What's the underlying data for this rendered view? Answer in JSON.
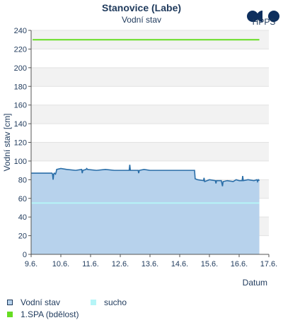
{
  "header": {
    "title": "Stanovice (Labe)",
    "subtitle": "Vodní stav",
    "logo_text": "HPPS"
  },
  "colors": {
    "text": "#1f3a5c",
    "water_line": "#2a6ea8",
    "water_fill": "#b7d2ec",
    "drought": "#b6f5f7",
    "spa1": "#66dd22",
    "band": "#f2f2f2",
    "axis": "#555555"
  },
  "chart_data": {
    "type": "line",
    "title": "Stanovice (Labe)",
    "subtitle": "Vodní stav",
    "xlabel": "Datum",
    "ylabel": "Vodní stav [cm]",
    "ylim": [
      0,
      240
    ],
    "yticks": [
      "0",
      "20",
      "40",
      "60",
      "80",
      "100",
      "120",
      "140",
      "160",
      "180",
      "200",
      "220",
      "240"
    ],
    "xlim": [
      0,
      8
    ],
    "xticks": [
      "9.6.",
      "10.6.",
      "11.6.",
      "12.6.",
      "13.6.",
      "14.6.",
      "15.6.",
      "16.6.",
      "17.6."
    ],
    "alternating_bands": true,
    "series": [
      {
        "name": "Vodní stav",
        "style": "area",
        "points": [
          [
            0.0,
            87
          ],
          [
            0.7,
            87
          ],
          [
            0.72,
            86
          ],
          [
            0.74,
            80
          ],
          [
            0.76,
            86
          ],
          [
            0.78,
            87
          ],
          [
            0.82,
            86
          ],
          [
            0.84,
            88
          ],
          [
            0.86,
            91
          ],
          [
            1.0,
            92
          ],
          [
            1.2,
            91
          ],
          [
            1.5,
            90
          ],
          [
            1.7,
            91
          ],
          [
            1.72,
            87
          ],
          [
            1.74,
            90
          ],
          [
            1.85,
            91
          ],
          [
            1.87,
            92
          ],
          [
            1.9,
            91
          ],
          [
            2.2,
            90
          ],
          [
            2.5,
            91
          ],
          [
            2.8,
            90
          ],
          [
            3.0,
            90
          ],
          [
            3.3,
            90
          ],
          [
            3.32,
            96
          ],
          [
            3.34,
            90
          ],
          [
            3.5,
            90
          ],
          [
            3.6,
            90
          ],
          [
            3.62,
            87
          ],
          [
            3.64,
            90
          ],
          [
            3.8,
            91
          ],
          [
            4.0,
            90
          ],
          [
            4.5,
            90
          ],
          [
            4.8,
            90
          ],
          [
            5.2,
            90
          ],
          [
            5.4,
            90
          ],
          [
            5.5,
            90
          ],
          [
            5.52,
            81
          ],
          [
            5.6,
            80
          ],
          [
            5.8,
            79
          ],
          [
            5.82,
            82
          ],
          [
            5.84,
            78
          ],
          [
            6.0,
            80
          ],
          [
            6.2,
            79
          ],
          [
            6.22,
            76
          ],
          [
            6.24,
            79
          ],
          [
            6.4,
            79
          ],
          [
            6.44,
            73
          ],
          [
            6.46,
            78
          ],
          [
            6.6,
            79
          ],
          [
            6.8,
            78
          ],
          [
            6.9,
            80
          ],
          [
            7.0,
            79
          ],
          [
            7.1,
            79
          ],
          [
            7.12,
            84
          ],
          [
            7.14,
            79
          ],
          [
            7.3,
            80
          ],
          [
            7.5,
            79
          ],
          [
            7.6,
            80
          ],
          [
            7.62,
            78
          ],
          [
            7.65,
            80
          ],
          [
            7.68,
            79
          ]
        ]
      },
      {
        "name": "sucho",
        "style": "line",
        "y": 55,
        "x_range": [
          0,
          7.68
        ]
      },
      {
        "name": "1.SPA (bdělost)",
        "style": "line",
        "y": 230,
        "x_range": [
          0.05,
          7.68
        ]
      }
    ]
  },
  "legend": {
    "water_level": "Vodní stav",
    "drought": "sucho",
    "spa1": "1.SPA (bdělost)"
  }
}
